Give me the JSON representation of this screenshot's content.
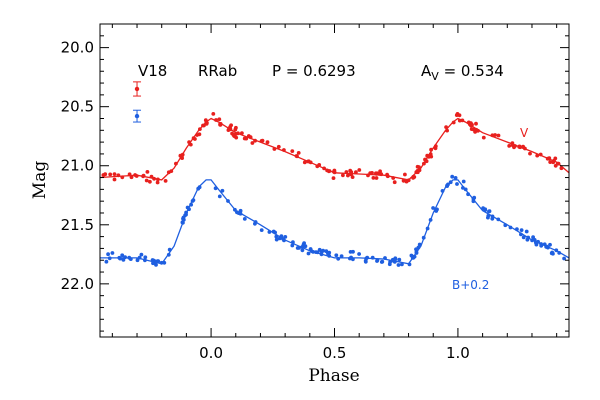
{
  "header": {
    "star": "V18",
    "type": "RRab",
    "period": "P = 0.6293",
    "amp_prefix": "A",
    "amp_sub": "V",
    "amp_value": " = 0.534"
  },
  "colors": {
    "v": "#e8201e",
    "b": "#1f5fe0"
  },
  "chart_data": {
    "type": "scatter",
    "xlabel": "Phase",
    "ylabel": "Mag",
    "xlim": [
      -0.45,
      1.45
    ],
    "ylim": [
      22.45,
      19.8
    ],
    "y_inverted": true,
    "xticks": [
      0.0,
      0.5,
      1.0
    ],
    "xtick_labels": [
      "0.0",
      "0.5",
      "1.0"
    ],
    "yticks": [
      20.0,
      20.5,
      21.0,
      21.5,
      22.0
    ],
    "ytick_labels": [
      "20.0",
      "20.5",
      "21.0",
      "21.5",
      "22.0"
    ],
    "series": [
      {
        "name": "V",
        "label_shown": "V",
        "color": "#e8201e",
        "error_bar": {
          "x": -0.3,
          "y": 20.35,
          "err": 0.06
        },
        "curve": {
          "x": [
            -0.45,
            -0.3,
            -0.2,
            -0.15,
            -0.1,
            -0.05,
            -0.02,
            0.0,
            0.03,
            0.1,
            0.2,
            0.3,
            0.4,
            0.5,
            0.6,
            0.7,
            0.8,
            0.85,
            0.9,
            0.95,
            0.98,
            1.0,
            1.03,
            1.1,
            1.2,
            1.3,
            1.4,
            1.45
          ],
          "y": [
            21.1,
            21.08,
            21.12,
            21.02,
            20.85,
            20.7,
            20.63,
            20.6,
            20.63,
            20.72,
            20.8,
            20.88,
            20.97,
            21.06,
            21.07,
            21.08,
            21.12,
            21.02,
            20.85,
            20.7,
            20.63,
            20.6,
            20.63,
            20.72,
            20.8,
            20.88,
            20.97,
            21.06
          ]
        }
      },
      {
        "name": "B",
        "label_shown": "B+0.2",
        "color": "#1f5fe0",
        "error_bar": {
          "x": -0.3,
          "y": 20.58,
          "err": 0.05
        },
        "curve": {
          "x": [
            -0.45,
            -0.3,
            -0.2,
            -0.15,
            -0.1,
            -0.05,
            -0.02,
            0.0,
            0.03,
            0.1,
            0.2,
            0.3,
            0.4,
            0.5,
            0.6,
            0.7,
            0.8,
            0.85,
            0.9,
            0.95,
            0.98,
            1.0,
            1.03,
            1.1,
            1.2,
            1.3,
            1.4,
            1.45
          ],
          "y": [
            21.78,
            21.78,
            21.83,
            21.68,
            21.4,
            21.18,
            21.12,
            21.12,
            21.2,
            21.38,
            21.5,
            21.63,
            21.72,
            21.78,
            21.78,
            21.79,
            21.83,
            21.68,
            21.4,
            21.18,
            21.12,
            21.12,
            21.2,
            21.38,
            21.5,
            21.63,
            21.72,
            21.78
          ]
        }
      }
    ]
  }
}
